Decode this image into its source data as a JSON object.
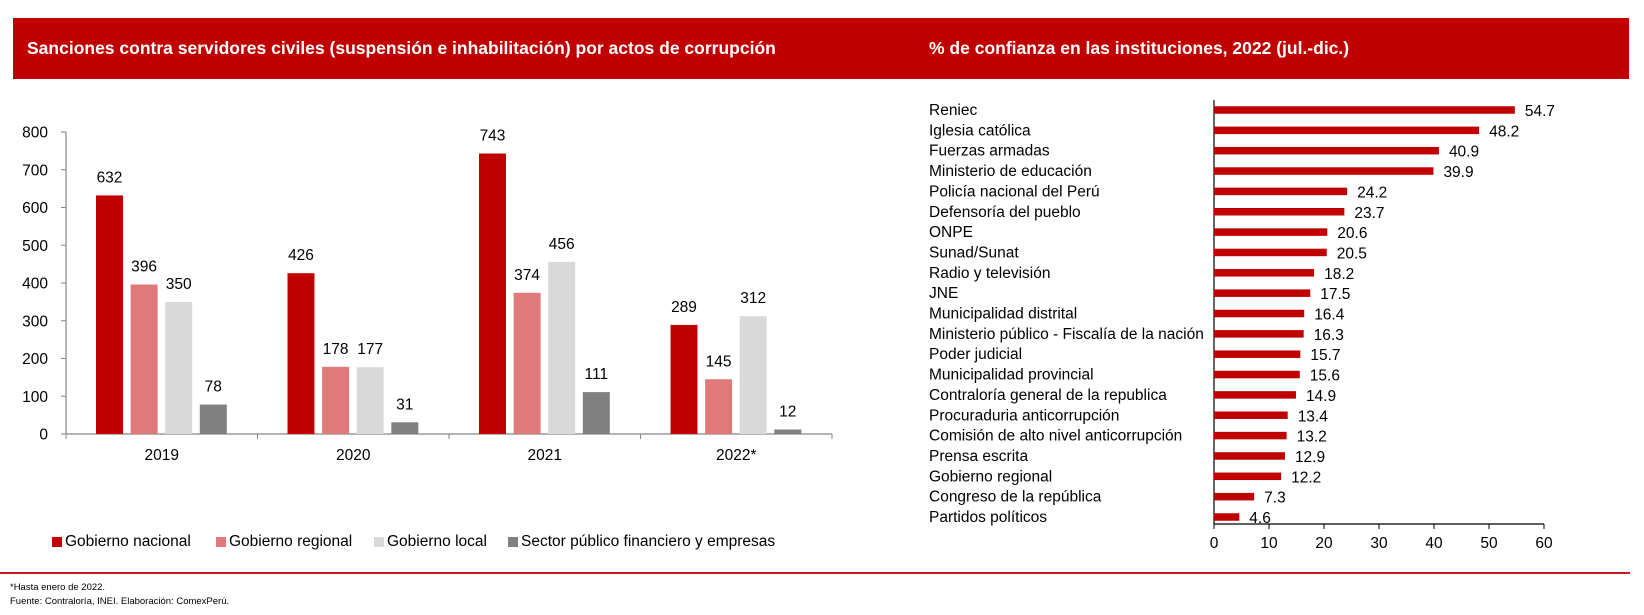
{
  "left_panel": {
    "title": "Sanciones contra servidores civiles (suspensión e inhabilitación) por actos de corrupción"
  },
  "right_panel": {
    "title": "% de confianza en las instituciones, 2022 (jul.-dic.)"
  },
  "colors": {
    "header_bg": "#c00000",
    "accent_red": "#c00000",
    "series": [
      "#c00000",
      "#e07a7a",
      "#d9d9d9",
      "#808080"
    ]
  },
  "footnotes": {
    "note": "*Hasta enero de 2022.",
    "source": "Fuente: Contraloría, INEI. Elaboración: ComexPerú."
  },
  "chart_data": [
    {
      "type": "bar",
      "title": "Sanciones contra servidores civiles (suspensión e inhabilitación) por actos de corrupción",
      "xlabel": "",
      "ylabel": "",
      "categories": [
        "2019",
        "2020",
        "2021",
        "2022*"
      ],
      "series": [
        {
          "name": "Gobierno nacional",
          "values": [
            632,
            426,
            743,
            289
          ]
        },
        {
          "name": "Gobierno regional",
          "values": [
            396,
            178,
            374,
            145
          ]
        },
        {
          "name": "Gobierno local",
          "values": [
            350,
            177,
            456,
            312
          ]
        },
        {
          "name": "Sector público financiero y empresas",
          "values": [
            78,
            31,
            111,
            12
          ]
        }
      ],
      "ylim": [
        0,
        800
      ],
      "yticks": [
        "0",
        "100",
        "200",
        "300",
        "400",
        "500",
        "600",
        "700",
        "800"
      ],
      "grid": false,
      "legend": "bottom",
      "data_labels": true
    },
    {
      "type": "bar",
      "orientation": "horizontal",
      "title": "% de confianza en las instituciones, 2022 (jul.-dic.)",
      "xlabel": "",
      "ylabel": "",
      "categories": [
        "Reniec",
        "Iglesia católica",
        "Fuerzas armadas",
        "Ministerio de educación",
        "Policía nacional del Perú",
        "Defensoría del pueblo",
        "ONPE",
        "Sunad/Sunat",
        "Radio y televisión",
        "JNE",
        "Municipalidad distrital",
        "Ministerio público - Fiscalía de la nación",
        "Poder judicial",
        "Municipalidad provincial",
        "Contraloría general de la republica",
        "Procuraduria anticorrupción",
        "Comisión de alto nivel anticorrupción",
        "Prensa escrita",
        "Gobierno regional",
        "Congreso de la república",
        "Partidos políticos"
      ],
      "values": [
        54.7,
        48.2,
        40.9,
        39.9,
        24.2,
        23.7,
        20.6,
        20.5,
        18.2,
        17.5,
        16.4,
        16.3,
        15.7,
        15.6,
        14.9,
        13.4,
        13.2,
        12.9,
        12.2,
        7.3,
        4.6
      ],
      "value_labels": [
        "54.7",
        "48.2",
        "40.9",
        "39.9",
        "24.2",
        "23.7",
        "20.6",
        "20.5",
        "18.2",
        "17.5",
        "16.4",
        "16.3",
        "15.7",
        "15.6",
        "14.9",
        "13.4",
        "13.2",
        "12.9",
        "12.2",
        "7.3",
        "4.6"
      ],
      "xlim": [
        0,
        60
      ],
      "xticks": [
        "0",
        "10",
        "20",
        "30",
        "40",
        "50",
        "60"
      ],
      "grid": false,
      "legend": "none",
      "data_labels": true
    }
  ]
}
